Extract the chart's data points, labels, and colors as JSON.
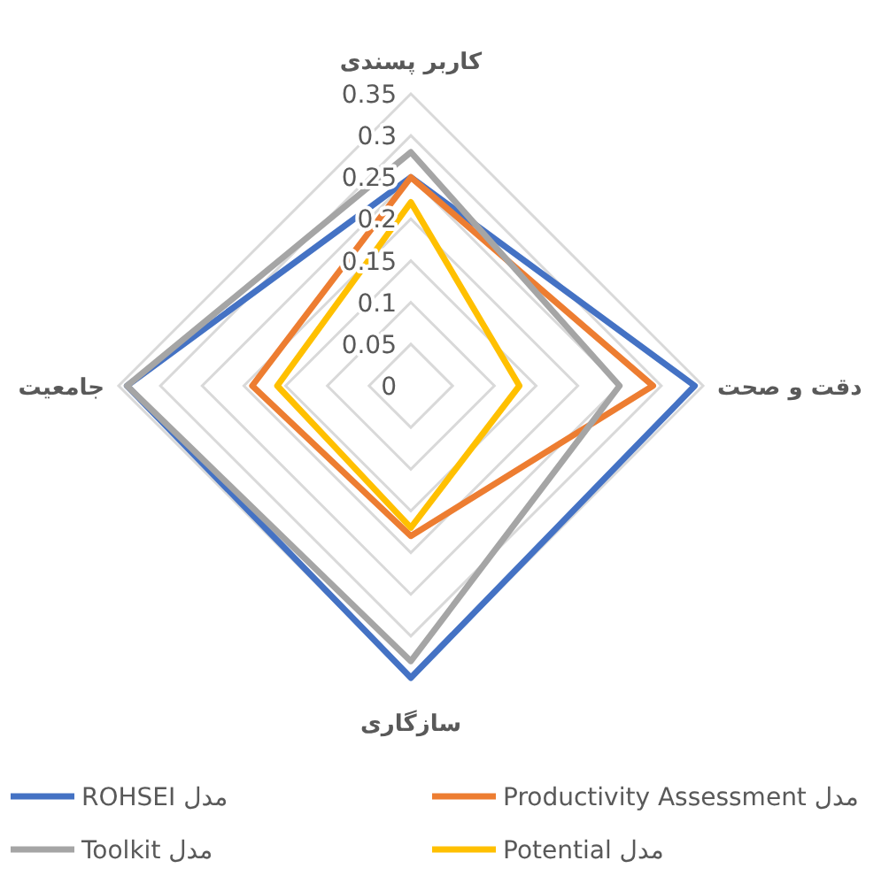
{
  "chart_data": {
    "type": "radar",
    "categories": [
      "کاربر پسندی",
      "دقت و صحت",
      "سازگاری",
      "جامعیت"
    ],
    "ylim": [
      0,
      0.35
    ],
    "yticks": [
      0,
      0.05,
      0.1,
      0.15,
      0.2,
      0.25,
      0.3,
      0.35
    ],
    "grid": true,
    "legend": "bottom",
    "marker": "none",
    "series": [
      {
        "name": "مدل ROHSEI",
        "color": "#4472c4",
        "values": [
          0.25,
          0.34,
          0.35,
          0.34
        ]
      },
      {
        "name": "مدل Productivity Assessment",
        "color": "#ed7d31",
        "values": [
          0.25,
          0.29,
          0.18,
          0.19
        ]
      },
      {
        "name": "مدل Toolkit",
        "color": "#a5a5a5",
        "values": [
          0.28,
          0.25,
          0.33,
          0.34
        ]
      },
      {
        "name": "مدل Potential",
        "color": "#ffc000",
        "values": [
          0.22,
          0.13,
          0.17,
          0.16
        ]
      }
    ]
  }
}
